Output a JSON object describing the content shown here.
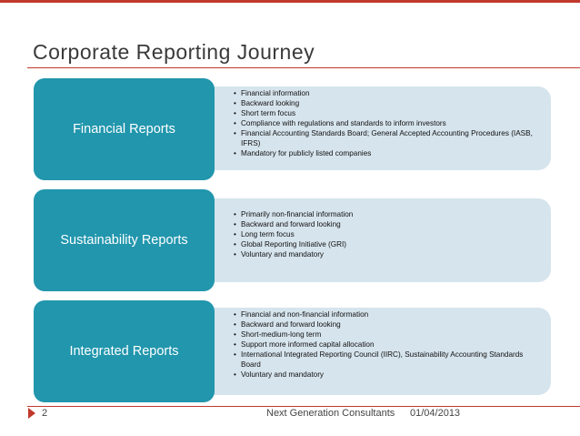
{
  "slide": {
    "title": "Corporate Reporting Journey",
    "footer": {
      "page_number": "2",
      "company": "Next Generation Consultants",
      "date": "01/04/2013"
    },
    "accent_color": "#c0392b",
    "label_color": "#2196ad",
    "detail_color": "#d6e4ed"
  },
  "sections": [
    {
      "label": "Financial Reports",
      "bullets": [
        "Financial information",
        "Backward looking",
        "Short term focus",
        "Compliance with regulations and standards to inform investors",
        "Financial Accounting Standards Board; General Accepted Accounting Procedures (IASB, IFRS)",
        "Mandatory for publicly listed companies"
      ]
    },
    {
      "label": "Sustainability Reports",
      "bullets": [
        "Primarily non-financial information",
        "Backward and forward looking",
        "Long term focus",
        "Global Reporting Initiative (GRI)",
        "Voluntary and mandatory"
      ]
    },
    {
      "label": "Integrated Reports",
      "bullets": [
        "Financial and non-financial information",
        "Backward and forward looking",
        "Short-medium-long term",
        "Support more informed capital allocation",
        "International Integrated Reporting Council (IIRC), Sustainability Accounting Standards Board",
        "Voluntary and mandatory"
      ]
    }
  ]
}
